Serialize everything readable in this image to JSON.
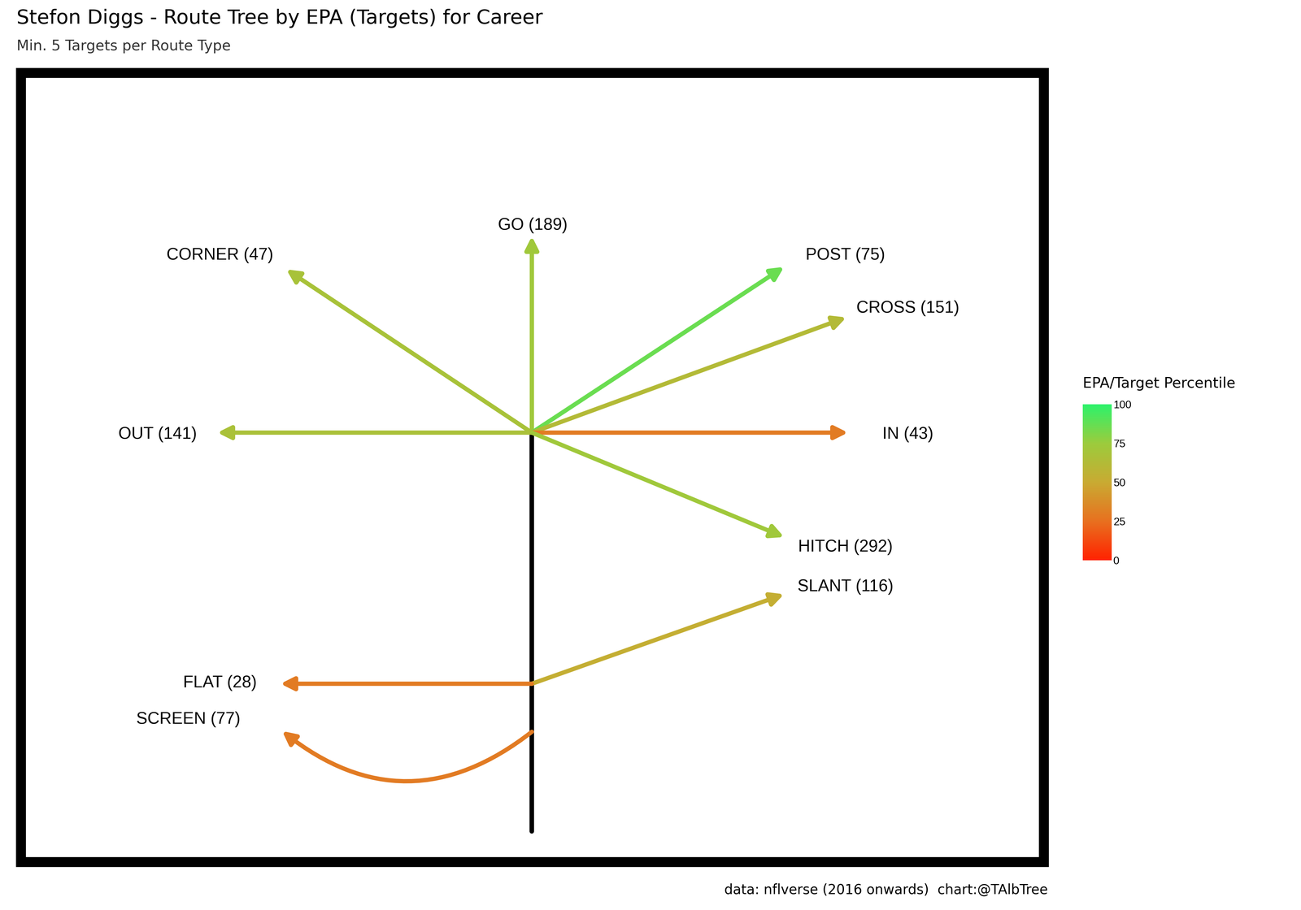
{
  "chart_data": {
    "type": "route_tree",
    "title": "Stefon Diggs - Route Tree by EPA (Targets) for Career",
    "subtitle": "Min. 5 Targets per Route Type",
    "caption": "data: nflverse (2016 onwards)  chart:@TAlbTree",
    "colorbar_title": "EPA/Target Percentile",
    "colorbar_lim": [
      0,
      100
    ],
    "colorbar_ticks": [
      0,
      25,
      50,
      75,
      100
    ],
    "routes": [
      {
        "label": "GO (189)",
        "percentile": 73
      },
      {
        "label": "CORNER (47)",
        "percentile": 68
      },
      {
        "label": "POST (75)",
        "percentile": 86
      },
      {
        "label": "CROSS (151)",
        "percentile": 62
      },
      {
        "label": "OUT (141)",
        "percentile": 67
      },
      {
        "label": "IN (43)",
        "percentile": 30
      },
      {
        "label": "HITCH (292)",
        "percentile": 73
      },
      {
        "label": "SLANT (116)",
        "percentile": 53
      },
      {
        "label": "FLAT (28)",
        "percentile": 30
      },
      {
        "label": "SCREEN (77)",
        "percentile": 30
      }
    ]
  }
}
